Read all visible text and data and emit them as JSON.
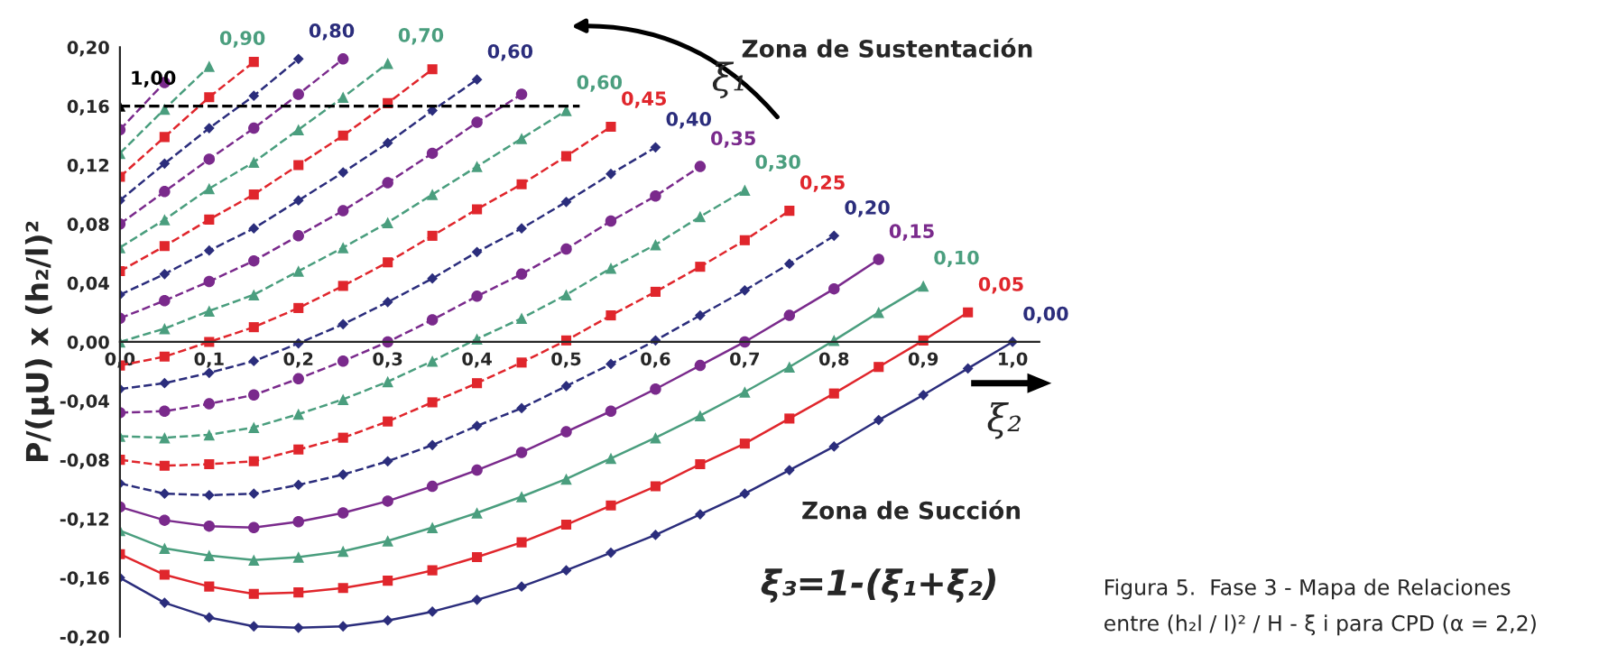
{
  "chart_data": {
    "type": "line",
    "ylabel": "P/(μU) x (h₂/l)²",
    "x": [
      0,
      0.05,
      0.1,
      0.15,
      0.2,
      0.25,
      0.3,
      0.35,
      0.4,
      0.45,
      0.5,
      0.55,
      0.6,
      0.65,
      0.7,
      0.75,
      0.8,
      0.85,
      0.9,
      0.95,
      1.0
    ],
    "xlim": [
      0,
      1.03
    ],
    "ylim": [
      -0.2,
      0.2
    ],
    "xticks": [
      {
        "value": 0,
        "label": "0,0"
      },
      {
        "value": 0.1,
        "label": "0,1"
      },
      {
        "value": 0.2,
        "label": "0,2"
      },
      {
        "value": 0.3,
        "label": "0,3"
      },
      {
        "value": 0.4,
        "label": "0,4"
      },
      {
        "value": 0.5,
        "label": "0,5"
      },
      {
        "value": 0.6,
        "label": "0,6"
      },
      {
        "value": 0.7,
        "label": "0,7"
      },
      {
        "value": 0.8,
        "label": "0,8"
      },
      {
        "value": 0.9,
        "label": "0,9"
      },
      {
        "value": 1.0,
        "label": "1,0"
      }
    ],
    "yticks": [
      {
        "value": -0.2,
        "label": "-0,20"
      },
      {
        "value": -0.16,
        "label": "-0,16"
      },
      {
        "value": -0.12,
        "label": "-0,12"
      },
      {
        "value": -0.08,
        "label": "-0,08"
      },
      {
        "value": -0.04,
        "label": "-0,04"
      },
      {
        "value": 0,
        "label": "0,00"
      },
      {
        "value": 0.04,
        "label": "0,04"
      },
      {
        "value": 0.08,
        "label": "0,08"
      },
      {
        "value": 0.12,
        "label": "0,12"
      },
      {
        "value": 0.16,
        "label": "0,16"
      },
      {
        "value": 0.2,
        "label": "0,20"
      }
    ],
    "grid": false,
    "ref_lines": [
      {
        "axis": "y",
        "value": 0.16,
        "color": "#000000",
        "line_style": "dashed"
      }
    ],
    "annotations": [
      "ξ₁",
      "ξ₂",
      "Zona de Sustentación",
      "Zona de Succión",
      "ξ₃=1-(ξ₁+ξ₂)",
      "Figura 5.  Fase 3 - Mapa de Relaciones",
      "entre (h₂l / l)² / H - ξ i para CPD (α = 2,2)"
    ],
    "series": [
      {
        "name": "0,00",
        "color": "#2b2d7c",
        "marker": "diamond",
        "line_style": "solid",
        "values": [
          -0.16,
          -0.177,
          -0.187,
          -0.193,
          -0.194,
          -0.193,
          -0.189,
          -0.183,
          -0.175,
          -0.166,
          -0.155,
          -0.143,
          -0.131,
          -0.117,
          -0.103,
          -0.087,
          -0.071,
          -0.053,
          -0.036,
          -0.018,
          0.0
        ]
      },
      {
        "name": "0,05",
        "color": "#e0262c",
        "marker": "square",
        "line_style": "solid",
        "values": [
          -0.144,
          -0.158,
          -0.166,
          -0.171,
          -0.17,
          -0.167,
          -0.162,
          -0.155,
          -0.146,
          -0.136,
          -0.124,
          -0.111,
          -0.098,
          -0.083,
          -0.069,
          -0.052,
          -0.035,
          -0.017,
          0.001,
          0.02,
          null
        ]
      },
      {
        "name": "0,10",
        "color": "#4a9e7e",
        "marker": "triangle",
        "line_style": "solid",
        "values": [
          -0.128,
          -0.14,
          -0.145,
          -0.148,
          -0.146,
          -0.142,
          -0.135,
          -0.126,
          -0.116,
          -0.105,
          -0.093,
          -0.079,
          -0.065,
          -0.05,
          -0.034,
          -0.017,
          0.001,
          0.02,
          0.038,
          null,
          null
        ]
      },
      {
        "name": "0,15",
        "color": "#7a2a8c",
        "marker": "circle",
        "line_style": "solid",
        "values": [
          -0.112,
          -0.121,
          -0.125,
          -0.126,
          -0.122,
          -0.116,
          -0.108,
          -0.098,
          -0.087,
          -0.075,
          -0.061,
          -0.047,
          -0.032,
          -0.016,
          0.0,
          0.018,
          0.036,
          0.056,
          null,
          null,
          null
        ]
      },
      {
        "name": "0,20",
        "color": "#2b2d7c",
        "marker": "diamond",
        "line_style": "dashed",
        "values": [
          -0.096,
          -0.103,
          -0.104,
          -0.103,
          -0.097,
          -0.09,
          -0.081,
          -0.07,
          -0.057,
          -0.045,
          -0.03,
          -0.015,
          0.001,
          0.018,
          0.035,
          0.053,
          0.072,
          null,
          null,
          null,
          null
        ]
      },
      {
        "name": "0,25",
        "color": "#e0262c",
        "marker": "square",
        "line_style": "dashed",
        "values": [
          -0.08,
          -0.084,
          -0.083,
          -0.081,
          -0.073,
          -0.065,
          -0.054,
          -0.041,
          -0.028,
          -0.014,
          0.001,
          0.018,
          0.034,
          0.051,
          0.069,
          0.089,
          null,
          null,
          null,
          null,
          null
        ]
      },
      {
        "name": "0,30",
        "color": "#4a9e7e",
        "marker": "triangle",
        "line_style": "dashed",
        "values": [
          -0.064,
          -0.065,
          -0.063,
          -0.058,
          -0.049,
          -0.039,
          -0.027,
          -0.013,
          0.002,
          0.016,
          0.032,
          0.05,
          0.066,
          0.085,
          0.103,
          null,
          null,
          null,
          null,
          null,
          null
        ]
      },
      {
        "name": "0,35",
        "color": "#7a2a8c",
        "marker": "circle",
        "line_style": "dashed",
        "values": [
          -0.048,
          -0.047,
          -0.042,
          -0.036,
          -0.025,
          -0.013,
          0.0,
          0.015,
          0.031,
          0.046,
          0.063,
          0.082,
          0.099,
          0.119,
          null,
          null,
          null,
          null,
          null,
          null,
          null
        ]
      },
      {
        "name": "0,40",
        "color": "#2b2d7c",
        "marker": "diamond",
        "line_style": "dashed",
        "values": [
          -0.032,
          -0.028,
          -0.021,
          -0.013,
          -0.001,
          0.012,
          0.027,
          0.043,
          0.061,
          0.077,
          0.095,
          0.114,
          0.132,
          null,
          null,
          null,
          null,
          null,
          null,
          null,
          null
        ]
      },
      {
        "name": "0,45",
        "color": "#e0262c",
        "marker": "square",
        "line_style": "dashed",
        "values": [
          -0.016,
          -0.01,
          0.0,
          0.01,
          0.023,
          0.038,
          0.054,
          0.072,
          0.09,
          0.107,
          0.126,
          0.146,
          null,
          null,
          null,
          null,
          null,
          null,
          null,
          null,
          null
        ]
      },
      {
        "name": "0,60",
        "color": "#4a9e7e",
        "marker": "triangle",
        "line_style": "dashed",
        "values": [
          0.0,
          0.009,
          0.021,
          0.032,
          0.048,
          0.064,
          0.081,
          0.1,
          0.119,
          0.138,
          0.157,
          null,
          null,
          null,
          null,
          null,
          null,
          null,
          null,
          null,
          null
        ]
      },
      {
        "color": "#7a2a8c",
        "marker": "circle",
        "line_style": "dashed",
        "values": [
          0.016,
          0.028,
          0.041,
          0.055,
          0.072,
          0.089,
          0.108,
          0.128,
          0.149,
          0.168,
          null,
          null,
          null,
          null,
          null,
          null,
          null,
          null,
          null,
          null,
          null
        ]
      },
      {
        "name": "0,60",
        "color": "#2b2d7c",
        "marker": "diamond",
        "line_style": "dashed",
        "values": [
          0.032,
          0.046,
          0.062,
          0.077,
          0.096,
          0.115,
          0.135,
          0.157,
          0.178,
          null,
          null,
          null,
          null,
          null,
          null,
          null,
          null,
          null,
          null,
          null,
          null
        ]
      },
      {
        "color": "#e0262c",
        "marker": "square",
        "line_style": "dashed",
        "values": [
          0.048,
          0.065,
          0.083,
          0.1,
          0.12,
          0.14,
          0.162,
          0.185,
          null,
          null,
          null,
          null,
          null,
          null,
          null,
          null,
          null,
          null,
          null,
          null,
          null
        ]
      },
      {
        "name": "0,70",
        "color": "#4a9e7e",
        "marker": "triangle",
        "line_style": "dashed",
        "values": [
          0.064,
          0.083,
          0.104,
          0.122,
          0.144,
          0.166,
          0.189,
          null,
          null,
          null,
          null,
          null,
          null,
          null,
          null,
          null,
          null,
          null,
          null,
          null,
          null
        ]
      },
      {
        "color": "#7a2a8c",
        "marker": "circle",
        "line_style": "dashed",
        "values": [
          0.08,
          0.102,
          0.124,
          0.145,
          0.168,
          0.192,
          null,
          null,
          null,
          null,
          null,
          null,
          null,
          null,
          null,
          null,
          null,
          null,
          null,
          null,
          null
        ]
      },
      {
        "name": "0,80",
        "color": "#2b2d7c",
        "marker": "diamond",
        "line_style": "dashed",
        "values": [
          0.096,
          0.121,
          0.145,
          0.167,
          0.192,
          null,
          null,
          null,
          null,
          null,
          null,
          null,
          null,
          null,
          null,
          null,
          null,
          null,
          null,
          null,
          null
        ]
      },
      {
        "color": "#e0262c",
        "marker": "square",
        "line_style": "dashed",
        "values": [
          0.112,
          0.139,
          0.166,
          0.19,
          null,
          null,
          null,
          null,
          null,
          null,
          null,
          null,
          null,
          null,
          null,
          null,
          null,
          null,
          null,
          null,
          null
        ]
      },
      {
        "name": "0,90",
        "color": "#4a9e7e",
        "marker": "triangle",
        "line_style": "dashed",
        "values": [
          0.128,
          0.158,
          0.187,
          null,
          null,
          null,
          null,
          null,
          null,
          null,
          null,
          null,
          null,
          null,
          null,
          null,
          null,
          null,
          null,
          null,
          null
        ]
      },
      {
        "color": "#7a2a8c",
        "marker": "circle",
        "line_style": "dashed",
        "values": [
          0.144,
          0.176,
          null,
          null,
          null,
          null,
          null,
          null,
          null,
          null,
          null,
          null,
          null,
          null,
          null,
          null,
          null,
          null,
          null,
          null,
          null
        ]
      },
      {
        "name": "1,00",
        "color": "#000000",
        "marker": "triangle",
        "line_style": "solid",
        "values": [
          0.16,
          null,
          null,
          null,
          null,
          null,
          null,
          null,
          null,
          null,
          null,
          null,
          null,
          null,
          null,
          null,
          null,
          null,
          null,
          null,
          null
        ]
      }
    ]
  }
}
